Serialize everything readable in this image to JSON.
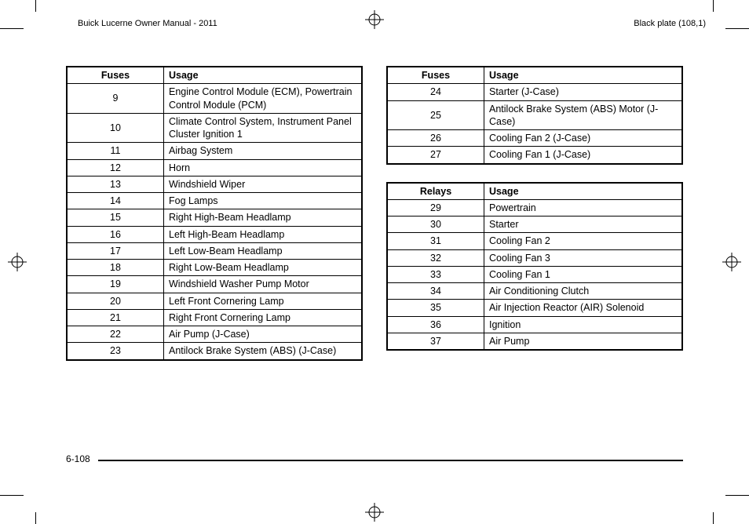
{
  "header": {
    "left": "Buick Lucerne Owner Manual - 2011",
    "right": "Black plate (108,1)"
  },
  "page_number": "6-108",
  "tables": {
    "fuses_left": {
      "headers": [
        "Fuses",
        "Usage"
      ],
      "rows": [
        [
          "9",
          "Engine Control Module (ECM), Powertrain Control Module (PCM)"
        ],
        [
          "10",
          "Climate Control System, Instrument Panel Cluster Ignition 1"
        ],
        [
          "11",
          "Airbag System"
        ],
        [
          "12",
          "Horn"
        ],
        [
          "13",
          "Windshield Wiper"
        ],
        [
          "14",
          "Fog Lamps"
        ],
        [
          "15",
          "Right High-Beam Headlamp"
        ],
        [
          "16",
          "Left High-Beam Headlamp"
        ],
        [
          "17",
          "Left Low-Beam Headlamp"
        ],
        [
          "18",
          "Right Low-Beam Headlamp"
        ],
        [
          "19",
          "Windshield Washer Pump Motor"
        ],
        [
          "20",
          "Left Front Cornering Lamp"
        ],
        [
          "21",
          "Right Front Cornering Lamp"
        ],
        [
          "22",
          "Air Pump (J-Case)"
        ],
        [
          "23",
          "Antilock Brake System (ABS) (J-Case)"
        ]
      ]
    },
    "fuses_right": {
      "headers": [
        "Fuses",
        "Usage"
      ],
      "rows": [
        [
          "24",
          "Starter (J-Case)"
        ],
        [
          "25",
          "Antilock Brake System (ABS) Motor (J-Case)"
        ],
        [
          "26",
          "Cooling Fan 2 (J-Case)"
        ],
        [
          "27",
          "Cooling Fan 1 (J-Case)"
        ]
      ]
    },
    "relays": {
      "headers": [
        "Relays",
        "Usage"
      ],
      "rows": [
        [
          "29",
          "Powertrain"
        ],
        [
          "30",
          "Starter"
        ],
        [
          "31",
          "Cooling Fan 2"
        ],
        [
          "32",
          "Cooling Fan 3"
        ],
        [
          "33",
          "Cooling Fan 1"
        ],
        [
          "34",
          "Air Conditioning Clutch"
        ],
        [
          "35",
          "Air Injection Reactor (AIR) Solenoid"
        ],
        [
          "36",
          "Ignition"
        ],
        [
          "37",
          "Air Pump"
        ]
      ]
    }
  }
}
